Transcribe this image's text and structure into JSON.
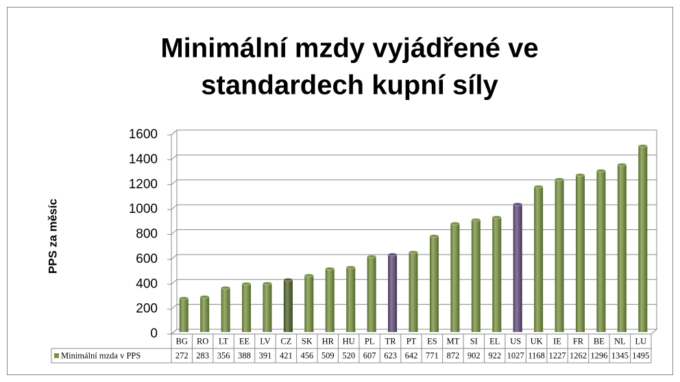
{
  "chart_data": {
    "type": "bar",
    "title": [
      "Minimální mzdy vyjádřené ve",
      "standardech kupní síly"
    ],
    "y_label": "PPS za měsíc",
    "categories": [
      "BG",
      "RO",
      "LT",
      "EE",
      "LV",
      "CZ",
      "SK",
      "HR",
      "HU",
      "PL",
      "TR",
      "PT",
      "ES",
      "MT",
      "SI",
      "EL",
      "US",
      "UK",
      "IE",
      "FR",
      "BE",
      "NL",
      "LU"
    ],
    "series": [
      {
        "name": "Minimální mzda v PPS",
        "color": "#77933c",
        "values": [
          272,
          283,
          356,
          388,
          391,
          421,
          456,
          509,
          520,
          607,
          623,
          642,
          771,
          872,
          902,
          922,
          1027,
          1168,
          1227,
          1262,
          1296,
          1345,
          1495
        ],
        "colors": [
          "#77933c",
          "#77933c",
          "#77933c",
          "#77933c",
          "#77933c",
          "#4f6228",
          "#77933c",
          "#77933c",
          "#77933c",
          "#77933c",
          "#604a7b",
          "#77933c",
          "#77933c",
          "#77933c",
          "#77933c",
          "#77933c",
          "#604a7b",
          "#77933c",
          "#77933c",
          "#77933c",
          "#77933c",
          "#77933c",
          "#77933c"
        ]
      }
    ],
    "ylim": [
      0,
      1600
    ],
    "yticks": [
      0,
      200,
      400,
      600,
      800,
      1000,
      1200,
      1400,
      1600
    ],
    "grid": true,
    "data_table": true
  }
}
